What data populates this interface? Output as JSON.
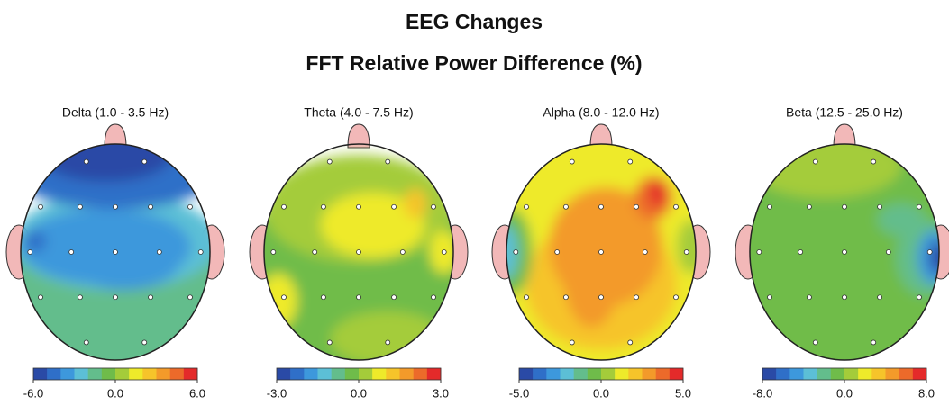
{
  "header": {
    "title": "EEG Changes",
    "subtitle": "FFT Relative Power Difference  (%)"
  },
  "maps": [
    {
      "label": "Delta (1.0 - 3.5 Hz)",
      "ticks": [
        {
          "value": -6,
          "label": "-6.0"
        },
        {
          "value": 0,
          "label": "0.0"
        },
        {
          "value": 6,
          "label": "6.0"
        }
      ]
    },
    {
      "label": "Theta (4.0 - 7.5 Hz)",
      "ticks": [
        {
          "value": -3,
          "label": "-3.0"
        },
        {
          "value": 0,
          "label": "0.0"
        },
        {
          "value": 3,
          "label": "3.0"
        }
      ]
    },
    {
      "label": "Alpha (8.0 - 12.0 Hz)",
      "ticks": [
        {
          "value": -5,
          "label": "-5.0"
        },
        {
          "value": 0,
          "label": "0.0"
        },
        {
          "value": 5,
          "label": "5.0"
        }
      ]
    },
    {
      "label": "Beta (12.5 - 25.0 Hz)",
      "ticks": [
        {
          "value": -8,
          "label": "-8.0"
        },
        {
          "value": 0,
          "label": "0.0"
        },
        {
          "value": 8,
          "label": "8.0"
        }
      ]
    }
  ]
}
